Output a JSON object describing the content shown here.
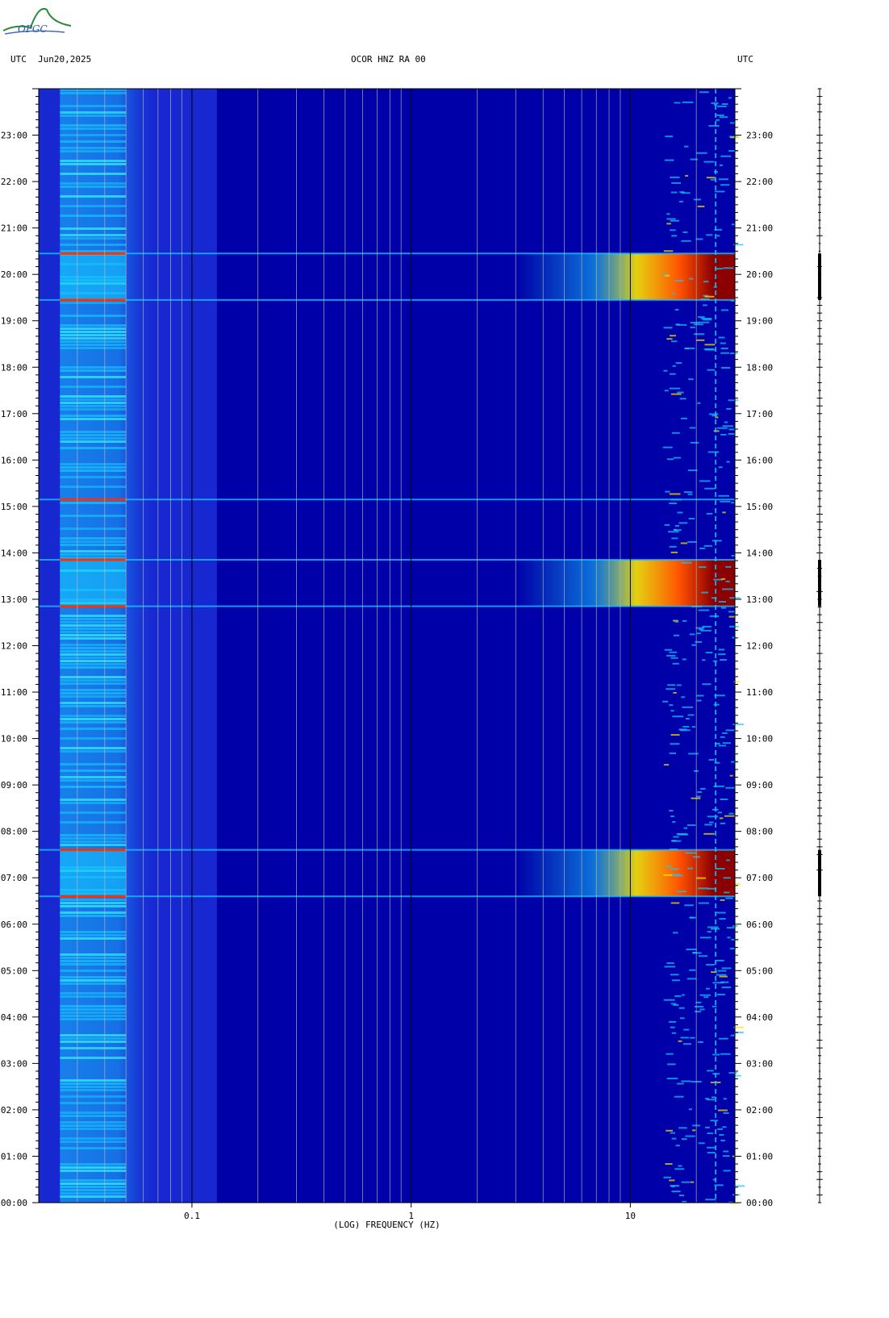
{
  "header": {
    "left_tz": "UTC",
    "date": "Jun20,2025",
    "station": "OCOR HNZ RA 00",
    "right_tz": "UTC"
  },
  "logo": {
    "text": "OPGC"
  },
  "colors": {
    "background": "#0000a8",
    "low": "#1c2fd8",
    "mid": "#16c8ff",
    "high": "#ffe600",
    "peak": "#8b0000"
  },
  "chart_data": {
    "type": "heatmap",
    "title": "OCOR HNZ RA 00",
    "xlabel": "(LOG) FREQUENCY (HZ)",
    "x_scale": "log",
    "xlim": [
      0.02,
      30
    ],
    "x_ticks": [
      {
        "value": 0.1,
        "label": "0.1"
      },
      {
        "value": 1,
        "label": "1"
      },
      {
        "value": 10,
        "label": "10"
      }
    ],
    "y_unit": "hours UTC",
    "ylim": [
      0,
      24
    ],
    "y_ticks": [
      "00:00",
      "01:00",
      "02:00",
      "03:00",
      "04:00",
      "05:00",
      "06:00",
      "07:00",
      "08:00",
      "09:00",
      "10:00",
      "11:00",
      "12:00",
      "13:00",
      "14:00",
      "15:00",
      "16:00",
      "17:00",
      "18:00",
      "19:00",
      "20:00",
      "21:00",
      "22:00",
      "23:00"
    ],
    "energy_bursts": [
      {
        "start": 6.6,
        "end": 7.6
      },
      {
        "start": 12.85,
        "end": 13.85
      },
      {
        "start": 19.45,
        "end": 20.45
      }
    ],
    "horizontal_lines_hours": [
      6.6,
      7.6,
      12.85,
      13.85,
      15.15,
      19.45,
      20.45
    ],
    "vertical_spike_hz": 24.5
  }
}
